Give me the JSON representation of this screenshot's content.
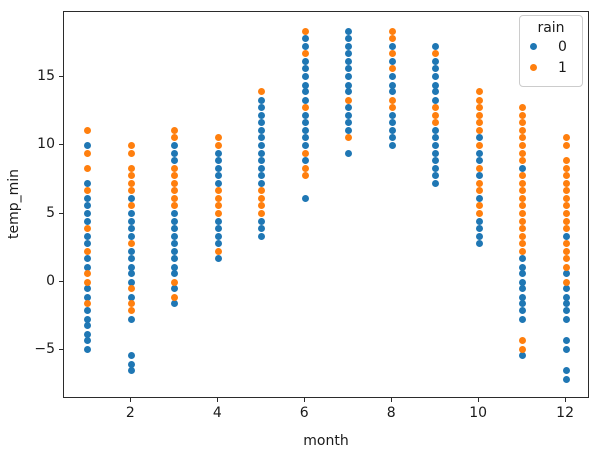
{
  "chart_data": {
    "type": "scatter",
    "title": "",
    "xlabel": "month",
    "ylabel": "temp_min",
    "xlim": [
      0.45,
      12.55
    ],
    "ylim": [
      -8.55,
      19.75
    ],
    "xticks": [
      2,
      4,
      6,
      8,
      10,
      12
    ],
    "xtick_labels": [
      "2",
      "4",
      "6",
      "8",
      "10",
      "12"
    ],
    "yticks": [
      -5,
      0,
      5,
      10,
      15
    ],
    "ytick_labels": [
      "−5",
      "0",
      "5",
      "10",
      "15"
    ],
    "grid": false,
    "legend": {
      "title": "rain",
      "position": "upper right",
      "entries": [
        {
          "label": "0",
          "color": "#1f77b4"
        },
        {
          "label": "1",
          "color": "#ff7f0e"
        }
      ]
    },
    "series": [
      {
        "name": "0",
        "color": "#1f77b4",
        "points": [
          [
            1,
            10.0
          ],
          [
            1,
            7.2
          ],
          [
            1,
            6.1
          ],
          [
            1,
            5.6
          ],
          [
            1,
            5.0
          ],
          [
            1,
            4.4
          ],
          [
            1,
            3.3
          ],
          [
            1,
            2.8
          ],
          [
            1,
            1.7
          ],
          [
            1,
            1.1
          ],
          [
            1,
            -0.5
          ],
          [
            1,
            -1.1
          ],
          [
            1,
            -2.1
          ],
          [
            1,
            -2.7
          ],
          [
            1,
            -3.2
          ],
          [
            1,
            -3.8
          ],
          [
            1,
            -4.3
          ],
          [
            1,
            -4.9
          ],
          [
            2,
            6.1
          ],
          [
            2,
            5.0
          ],
          [
            2,
            4.4
          ],
          [
            2,
            3.9
          ],
          [
            2,
            3.3
          ],
          [
            2,
            2.2
          ],
          [
            2,
            1.7
          ],
          [
            2,
            1.1
          ],
          [
            2,
            0.6
          ],
          [
            2,
            0.0
          ],
          [
            2,
            -1.1
          ],
          [
            2,
            -2.7
          ],
          [
            2,
            -5.4
          ],
          [
            2,
            -6.0
          ],
          [
            2,
            -6.5
          ],
          [
            3,
            10.0
          ],
          [
            3,
            9.4
          ],
          [
            3,
            8.9
          ],
          [
            3,
            5.0
          ],
          [
            3,
            4.4
          ],
          [
            3,
            3.9
          ],
          [
            3,
            3.3
          ],
          [
            3,
            2.8
          ],
          [
            3,
            2.2
          ],
          [
            3,
            1.7
          ],
          [
            3,
            1.1
          ],
          [
            3,
            0.6
          ],
          [
            3,
            -0.5
          ],
          [
            3,
            -1.6
          ],
          [
            4,
            9.4
          ],
          [
            4,
            8.9
          ],
          [
            4,
            8.3
          ],
          [
            4,
            7.8
          ],
          [
            4,
            7.2
          ],
          [
            4,
            4.4
          ],
          [
            4,
            3.9
          ],
          [
            4,
            3.3
          ],
          [
            4,
            2.8
          ],
          [
            4,
            1.7
          ],
          [
            5,
            13.3
          ],
          [
            5,
            12.8
          ],
          [
            5,
            12.2
          ],
          [
            5,
            11.7
          ],
          [
            5,
            11.1
          ],
          [
            5,
            10.6
          ],
          [
            5,
            10.0
          ],
          [
            5,
            9.4
          ],
          [
            5,
            8.9
          ],
          [
            5,
            8.3
          ],
          [
            5,
            7.8
          ],
          [
            5,
            7.2
          ],
          [
            5,
            4.4
          ],
          [
            5,
            3.9
          ],
          [
            5,
            3.3
          ],
          [
            6,
            17.8
          ],
          [
            6,
            17.2
          ],
          [
            6,
            16.1
          ],
          [
            6,
            15.6
          ],
          [
            6,
            15.0
          ],
          [
            6,
            14.4
          ],
          [
            6,
            13.9
          ],
          [
            6,
            13.3
          ],
          [
            6,
            12.2
          ],
          [
            6,
            11.7
          ],
          [
            6,
            11.1
          ],
          [
            6,
            10.6
          ],
          [
            6,
            10.0
          ],
          [
            6,
            8.9
          ],
          [
            6,
            6.1
          ],
          [
            7,
            18.3
          ],
          [
            7,
            17.8
          ],
          [
            7,
            17.2
          ],
          [
            7,
            16.7
          ],
          [
            7,
            16.1
          ],
          [
            7,
            15.6
          ],
          [
            7,
            15.0
          ],
          [
            7,
            14.4
          ],
          [
            7,
            13.9
          ],
          [
            7,
            12.8
          ],
          [
            7,
            12.2
          ],
          [
            7,
            11.7
          ],
          [
            7,
            11.1
          ],
          [
            7,
            9.4
          ],
          [
            8,
            17.2
          ],
          [
            8,
            16.1
          ],
          [
            8,
            15.0
          ],
          [
            8,
            14.4
          ],
          [
            8,
            13.9
          ],
          [
            8,
            12.2
          ],
          [
            8,
            11.7
          ],
          [
            8,
            11.1
          ],
          [
            8,
            10.6
          ],
          [
            8,
            10.0
          ],
          [
            9,
            17.2
          ],
          [
            9,
            16.1
          ],
          [
            9,
            15.6
          ],
          [
            9,
            15.0
          ],
          [
            9,
            14.4
          ],
          [
            9,
            13.9
          ],
          [
            9,
            13.3
          ],
          [
            9,
            11.1
          ],
          [
            9,
            10.6
          ],
          [
            9,
            10.0
          ],
          [
            9,
            9.4
          ],
          [
            9,
            8.9
          ],
          [
            9,
            8.3
          ],
          [
            9,
            7.8
          ],
          [
            9,
            7.2
          ],
          [
            10,
            10.6
          ],
          [
            10,
            9.4
          ],
          [
            10,
            8.9
          ],
          [
            10,
            7.8
          ],
          [
            10,
            6.1
          ],
          [
            10,
            4.4
          ],
          [
            10,
            3.9
          ],
          [
            10,
            3.3
          ],
          [
            10,
            2.8
          ],
          [
            11,
            8.3
          ],
          [
            11,
            1.7
          ],
          [
            11,
            1.1
          ],
          [
            11,
            0.6
          ],
          [
            11,
            0.0
          ],
          [
            11,
            -0.5
          ],
          [
            11,
            -1.1
          ],
          [
            11,
            -1.6
          ],
          [
            11,
            -2.1
          ],
          [
            11,
            -2.7
          ],
          [
            11,
            -5.4
          ],
          [
            12,
            3.3
          ],
          [
            12,
            0.6
          ],
          [
            12,
            -0.5
          ],
          [
            12,
            -1.1
          ],
          [
            12,
            -1.6
          ],
          [
            12,
            -2.1
          ],
          [
            12,
            -2.7
          ],
          [
            12,
            -4.3
          ],
          [
            12,
            -4.9
          ],
          [
            12,
            -6.5
          ],
          [
            12,
            -7.1
          ]
        ]
      },
      {
        "name": "1",
        "color": "#ff7f0e",
        "points": [
          [
            1,
            11.1
          ],
          [
            1,
            9.4
          ],
          [
            1,
            8.3
          ],
          [
            1,
            6.7
          ],
          [
            1,
            3.9
          ],
          [
            1,
            2.2
          ],
          [
            1,
            0.6
          ],
          [
            1,
            0.0
          ],
          [
            1,
            -1.6
          ],
          [
            2,
            10.0
          ],
          [
            2,
            9.4
          ],
          [
            2,
            8.3
          ],
          [
            2,
            7.8
          ],
          [
            2,
            7.2
          ],
          [
            2,
            6.7
          ],
          [
            2,
            5.6
          ],
          [
            2,
            2.8
          ],
          [
            2,
            -0.5
          ],
          [
            2,
            -1.6
          ],
          [
            2,
            -2.1
          ],
          [
            3,
            11.1
          ],
          [
            3,
            10.6
          ],
          [
            3,
            8.3
          ],
          [
            3,
            7.8
          ],
          [
            3,
            7.2
          ],
          [
            3,
            6.7
          ],
          [
            3,
            6.1
          ],
          [
            3,
            5.6
          ],
          [
            3,
            0.0
          ],
          [
            3,
            -1.1
          ],
          [
            4,
            10.6
          ],
          [
            4,
            10.0
          ],
          [
            4,
            6.7
          ],
          [
            4,
            6.1
          ],
          [
            4,
            5.6
          ],
          [
            4,
            5.0
          ],
          [
            4,
            2.2
          ],
          [
            5,
            13.9
          ],
          [
            5,
            6.7
          ],
          [
            5,
            6.1
          ],
          [
            5,
            5.6
          ],
          [
            5,
            5.0
          ],
          [
            6,
            18.3
          ],
          [
            6,
            16.7
          ],
          [
            6,
            12.8
          ],
          [
            6,
            9.4
          ],
          [
            6,
            8.3
          ],
          [
            6,
            7.8
          ],
          [
            7,
            13.3
          ],
          [
            7,
            10.6
          ],
          [
            8,
            18.3
          ],
          [
            8,
            17.8
          ],
          [
            8,
            16.7
          ],
          [
            8,
            15.6
          ],
          [
            8,
            13.3
          ],
          [
            8,
            12.8
          ],
          [
            9,
            16.7
          ],
          [
            9,
            12.8
          ],
          [
            9,
            12.2
          ],
          [
            9,
            11.7
          ],
          [
            10,
            13.9
          ],
          [
            10,
            13.3
          ],
          [
            10,
            12.8
          ],
          [
            10,
            12.2
          ],
          [
            10,
            11.7
          ],
          [
            10,
            11.1
          ],
          [
            10,
            10.0
          ],
          [
            10,
            8.3
          ],
          [
            10,
            7.2
          ],
          [
            10,
            6.7
          ],
          [
            10,
            5.6
          ],
          [
            10,
            5.0
          ],
          [
            11,
            12.8
          ],
          [
            11,
            12.2
          ],
          [
            11,
            11.7
          ],
          [
            11,
            11.1
          ],
          [
            11,
            10.6
          ],
          [
            11,
            10.0
          ],
          [
            11,
            9.4
          ],
          [
            11,
            8.9
          ],
          [
            11,
            7.8
          ],
          [
            11,
            7.2
          ],
          [
            11,
            6.7
          ],
          [
            11,
            6.1
          ],
          [
            11,
            5.6
          ],
          [
            11,
            5.0
          ],
          [
            11,
            4.4
          ],
          [
            11,
            3.9
          ],
          [
            11,
            3.3
          ],
          [
            11,
            2.8
          ],
          [
            11,
            2.2
          ],
          [
            11,
            -4.3
          ],
          [
            11,
            -4.9
          ],
          [
            12,
            10.6
          ],
          [
            12,
            10.0
          ],
          [
            12,
            8.9
          ],
          [
            12,
            8.3
          ],
          [
            12,
            7.8
          ],
          [
            12,
            7.2
          ],
          [
            12,
            6.7
          ],
          [
            12,
            6.1
          ],
          [
            12,
            5.6
          ],
          [
            12,
            5.0
          ],
          [
            12,
            4.4
          ],
          [
            12,
            3.9
          ],
          [
            12,
            2.8
          ],
          [
            12,
            2.2
          ],
          [
            12,
            1.7
          ],
          [
            12,
            1.1
          ],
          [
            12,
            0.0
          ]
        ]
      }
    ]
  }
}
